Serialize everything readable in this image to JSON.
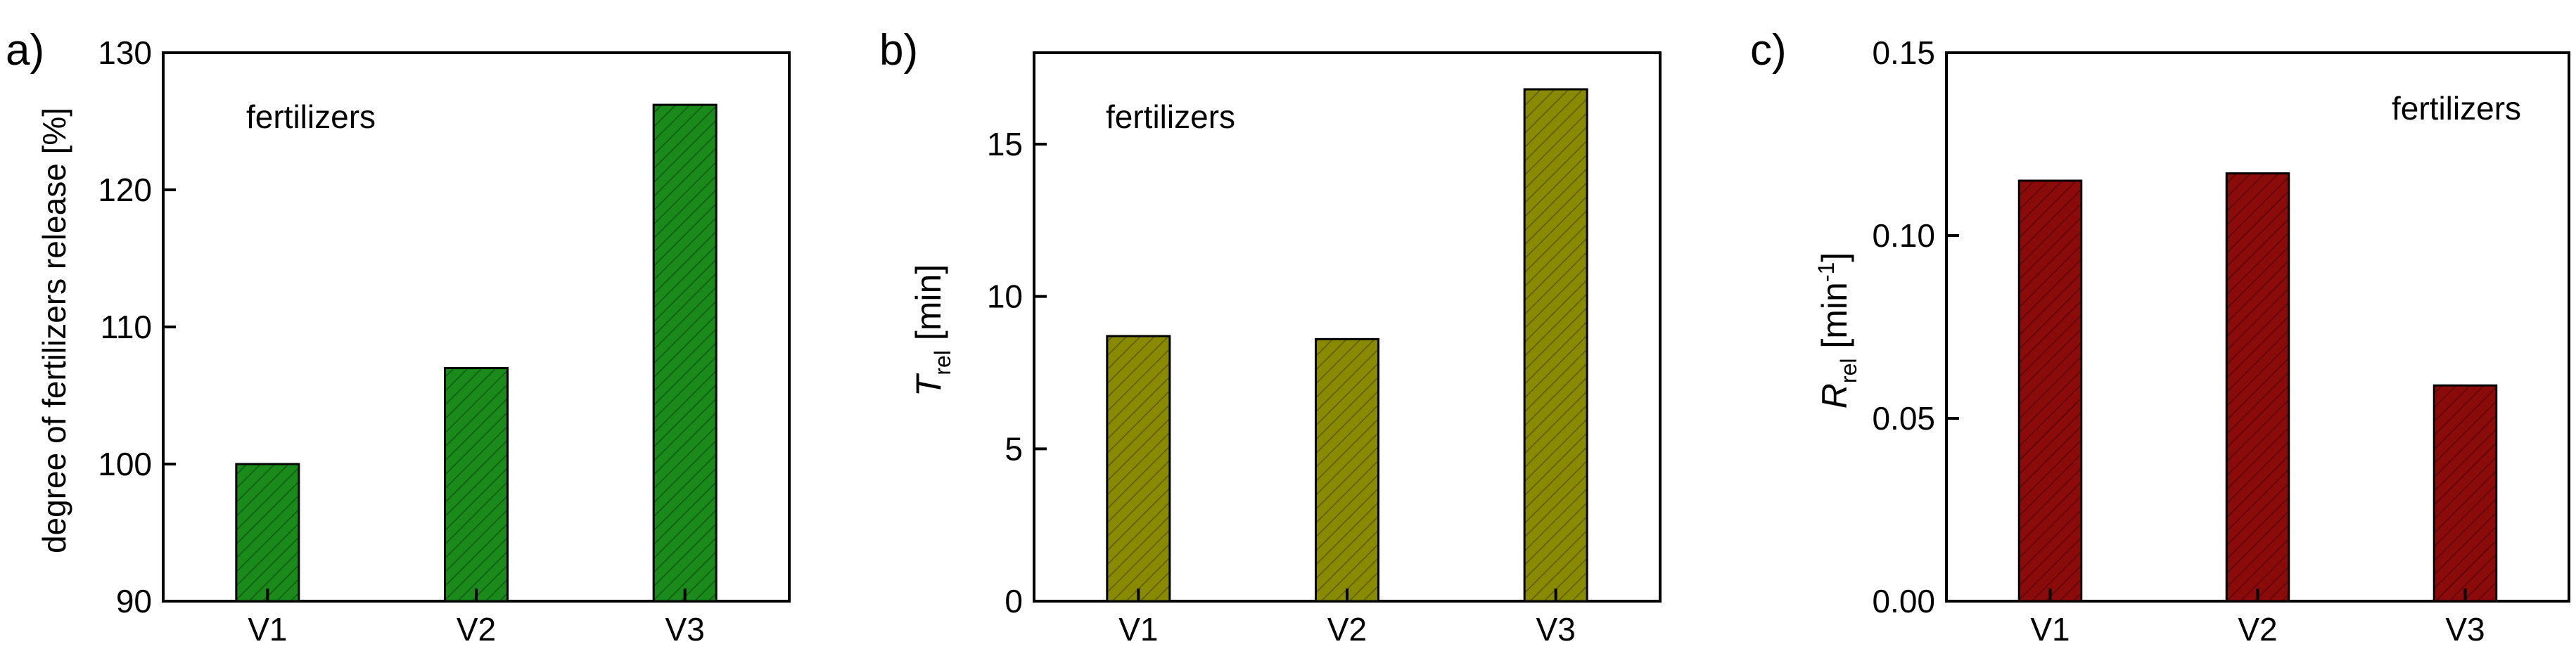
{
  "chart_data": [
    {
      "type": "bar",
      "panel_label": "a)",
      "annotation": "fertilizers",
      "categories": [
        "V1",
        "V2",
        "V3"
      ],
      "values": [
        100.0,
        107.0,
        126.2
      ],
      "ylabel": "degree of fertilizers release [%]",
      "ylim": [
        90,
        130
      ],
      "yticks": [
        90,
        100,
        110,
        120,
        130
      ],
      "bar_color": "#1a8a1a",
      "grid": false
    },
    {
      "type": "bar",
      "panel_label": "b)",
      "annotation": "fertilizers",
      "categories": [
        "V1",
        "V2",
        "V3"
      ],
      "values": [
        8.7,
        8.6,
        16.8
      ],
      "ylabel": {
        "symbol": "T",
        "subscript": "rel",
        "unit": " [min]"
      },
      "ylim": [
        0,
        18
      ],
      "yticks": [
        0,
        5,
        10,
        15
      ],
      "bar_color": "#8a8a00",
      "grid": false
    },
    {
      "type": "bar",
      "panel_label": "c)",
      "annotation": "fertilizers",
      "categories": [
        "V1",
        "V2",
        "V3"
      ],
      "values": [
        0.115,
        0.117,
        0.059
      ],
      "ylabel": {
        "symbol": "R",
        "subscript": "rel",
        "unit_pre": " [min",
        "unit_sup": "-1",
        "unit_post": "]"
      },
      "ylim": [
        0,
        0.15
      ],
      "yticks": [
        "0.00",
        "0.05",
        "0.10",
        "0.15"
      ],
      "bar_color": "#8b0a0a",
      "grid": false
    }
  ]
}
